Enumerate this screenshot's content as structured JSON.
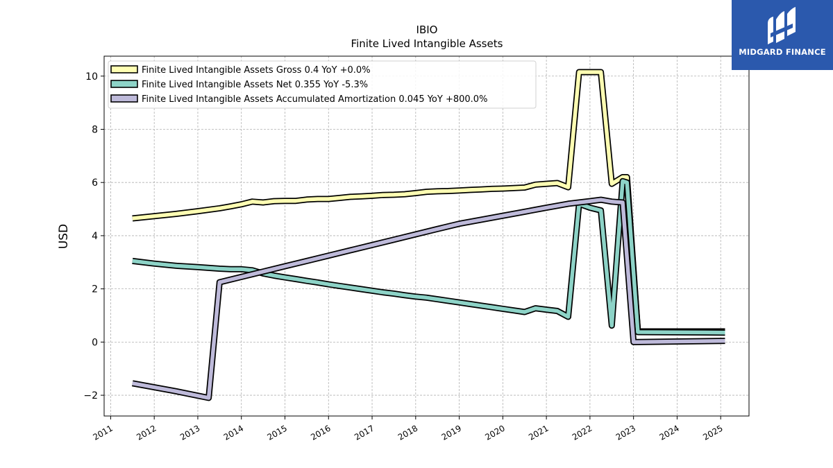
{
  "brand": {
    "name": "MIDGARD FINANCE",
    "background": "#2b59ad"
  },
  "chart_data": {
    "type": "line",
    "title": "IBIO",
    "subtitle": "Finite Lived Intangible Assets",
    "ylabel": "USD",
    "xlabel": "",
    "xlim": [
      2010.85,
      2025.65
    ],
    "ylim": [
      -2.78,
      10.75
    ],
    "yticks": [
      -2,
      0,
      2,
      4,
      6,
      8,
      10
    ],
    "xticks": [
      2011,
      2012,
      2013,
      2014,
      2015,
      2016,
      2017,
      2018,
      2019,
      2020,
      2021,
      2022,
      2023,
      2024,
      2025
    ],
    "grid": true,
    "legend_position": "top-left",
    "series": [
      {
        "name": "Finite Lived Intangible Assets Gross",
        "legend": "Finite Lived Intangible Assets Gross  0.4 YoY +0.0%",
        "color": "#ffffb3",
        "x": [
          2011.5,
          2012.5,
          2013.0,
          2013.5,
          2013.75,
          2014.0,
          2014.25,
          2014.5,
          2014.75,
          2015.0,
          2015.25,
          2015.5,
          2015.75,
          2016.0,
          2016.25,
          2016.5,
          2016.75,
          2017.0,
          2017.25,
          2017.5,
          2017.75,
          2018.0,
          2018.25,
          2018.5,
          2018.75,
          2019.0,
          2019.25,
          2019.5,
          2019.75,
          2020.0,
          2020.25,
          2020.5,
          2020.75,
          2021.0,
          2021.25,
          2021.5,
          2021.75,
          2022.0,
          2022.25,
          2022.5,
          2022.75,
          2022.85,
          2023.1,
          2025.1
        ],
        "y": [
          4.65,
          4.82,
          4.92,
          5.03,
          5.1,
          5.18,
          5.28,
          5.25,
          5.3,
          5.31,
          5.31,
          5.36,
          5.38,
          5.38,
          5.42,
          5.46,
          5.48,
          5.5,
          5.53,
          5.54,
          5.56,
          5.6,
          5.65,
          5.67,
          5.68,
          5.7,
          5.72,
          5.74,
          5.76,
          5.77,
          5.79,
          5.81,
          5.92,
          5.95,
          5.98,
          5.82,
          10.15,
          10.15,
          10.15,
          5.95,
          6.2,
          6.2,
          0.4,
          0.4
        ]
      },
      {
        "name": "Finite Lived Intangible Assets Net",
        "legend": "Finite Lived Intangible Assets Net  0.355 YoY -5.3%",
        "color": "#8dd3c7",
        "x": [
          2011.5,
          2012.0,
          2012.5,
          2013.0,
          2013.5,
          2013.75,
          2014.0,
          2014.25,
          2014.5,
          2014.75,
          2015.0,
          2015.25,
          2015.5,
          2015.75,
          2016.0,
          2016.25,
          2016.5,
          2016.75,
          2017.0,
          2017.25,
          2017.5,
          2017.75,
          2018.0,
          2018.25,
          2018.5,
          2018.75,
          2019.0,
          2019.25,
          2019.5,
          2019.75,
          2020.0,
          2020.25,
          2020.5,
          2020.75,
          2021.0,
          2021.25,
          2021.5,
          2021.75,
          2022.0,
          2022.25,
          2022.5,
          2022.75,
          2022.85,
          2023.1,
          2025.1
        ],
        "y": [
          3.05,
          2.95,
          2.87,
          2.82,
          2.76,
          2.74,
          2.74,
          2.7,
          2.58,
          2.5,
          2.43,
          2.37,
          2.3,
          2.24,
          2.17,
          2.11,
          2.05,
          1.99,
          1.93,
          1.87,
          1.82,
          1.76,
          1.71,
          1.67,
          1.61,
          1.55,
          1.49,
          1.43,
          1.37,
          1.31,
          1.25,
          1.19,
          1.13,
          1.27,
          1.22,
          1.17,
          0.95,
          5.2,
          5.05,
          4.95,
          0.62,
          6.05,
          6.0,
          0.375,
          0.355
        ]
      },
      {
        "name": "Finite Lived Intangible Assets Accumulated Amortization",
        "legend": "Finite Lived Intangible Assets Accumulated Amortization  0.045 YoY +800.0%",
        "color": "#bebada",
        "x": [
          2011.5,
          2012.5,
          2013.25,
          2013.5,
          2014.0,
          2014.5,
          2015.0,
          2015.5,
          2016.0,
          2016.5,
          2017.0,
          2017.5,
          2018.0,
          2018.5,
          2019.0,
          2019.5,
          2020.0,
          2020.5,
          2021.0,
          2021.5,
          2022.0,
          2022.25,
          2022.5,
          2022.75,
          2023.0,
          2025.1
        ],
        "y": [
          -1.55,
          -1.85,
          -2.1,
          2.25,
          2.45,
          2.65,
          2.85,
          3.05,
          3.25,
          3.45,
          3.65,
          3.85,
          4.05,
          4.25,
          4.45,
          4.6,
          4.75,
          4.9,
          5.05,
          5.2,
          5.3,
          5.35,
          5.28,
          5.25,
          0.0,
          0.045
        ]
      }
    ]
  }
}
